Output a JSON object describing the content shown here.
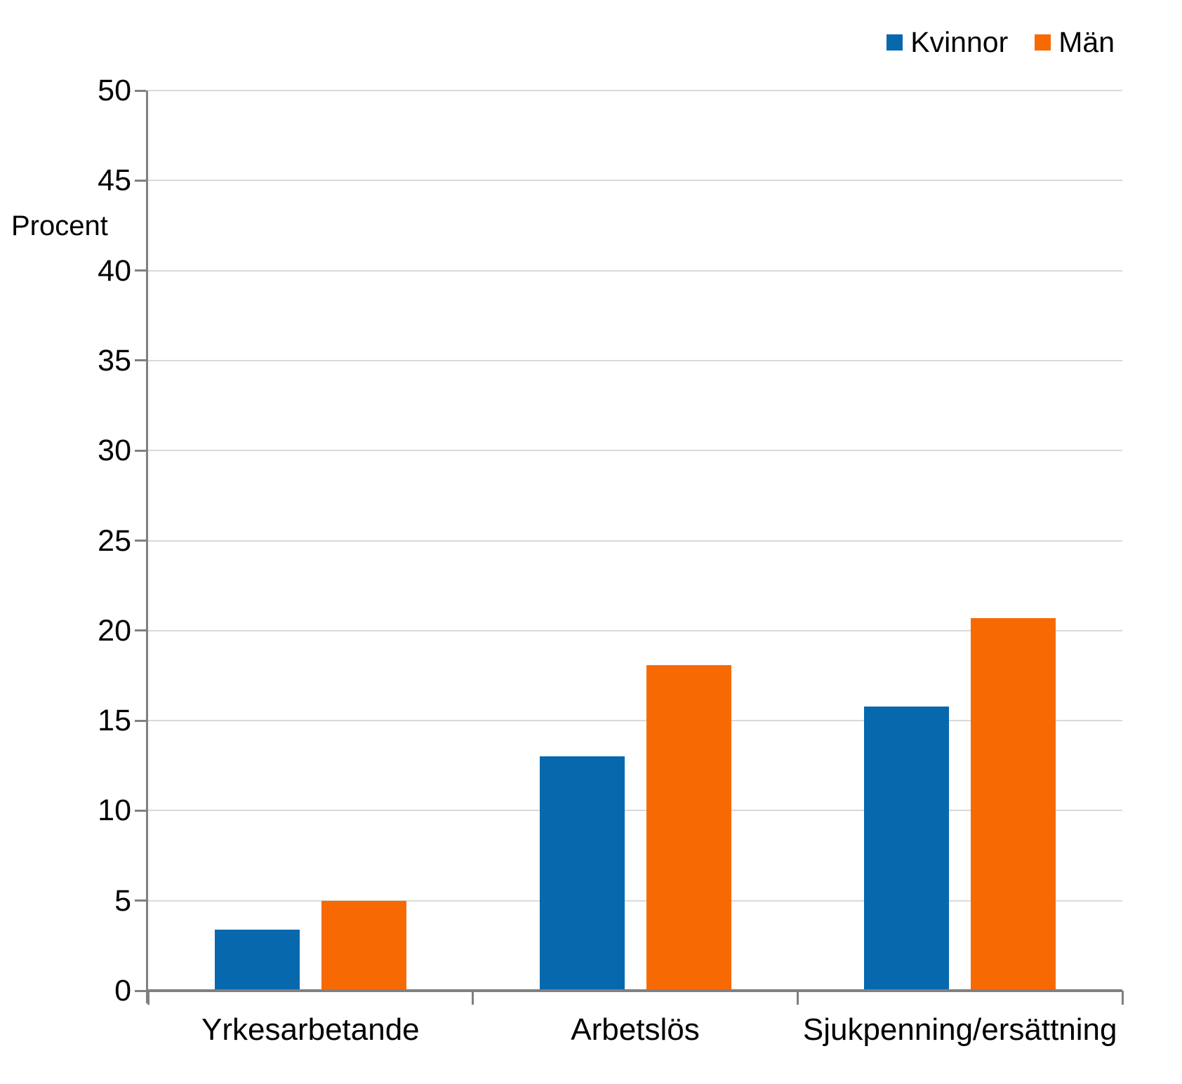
{
  "chart_data": {
    "type": "bar",
    "title": "",
    "ylabel": "Procent",
    "xlabel": "",
    "categories": [
      "Yrkesarbetande",
      "Arbetslös",
      "Sjukpenning/ersättning"
    ],
    "series": [
      {
        "name": "Kvinnor",
        "color": "#0768ae",
        "values": [
          3.4,
          13.0,
          15.8
        ]
      },
      {
        "name": "Män",
        "color": "#f76a03",
        "values": [
          5.0,
          18.1,
          20.7
        ]
      }
    ],
    "ylim": [
      0,
      50
    ],
    "ytick_step": 5,
    "grid": true,
    "legend_position": "top-right"
  },
  "style": {
    "axis_color": "#808080",
    "gridline_color": "#d9d9d9",
    "text_color": "#000000",
    "background": "#ffffff"
  }
}
